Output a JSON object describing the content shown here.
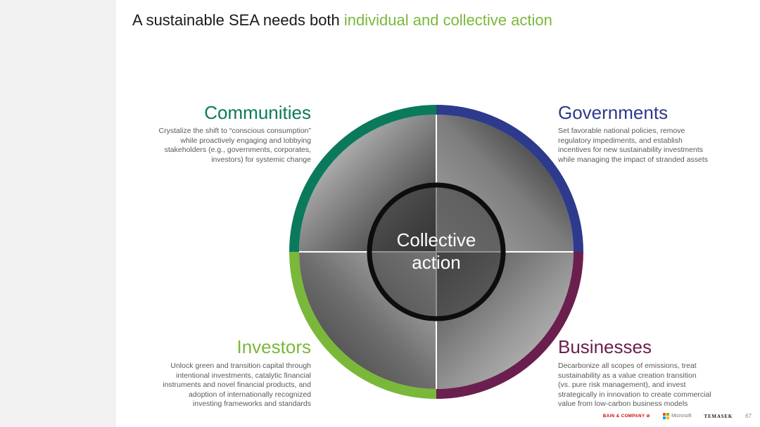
{
  "title": {
    "main": "A sustainable SEA needs both ",
    "accent": "individual and collective action"
  },
  "center": {
    "line1": "Collective",
    "line2": "action"
  },
  "quadrants": {
    "communities": {
      "heading": "Communities",
      "lines": [
        "Crystalize the shift to “conscious consumption”",
        "while proactively engaging and lobbying",
        "stakeholders (e.g., governments, corporates,",
        "investors) for systemic change"
      ],
      "color": "#0b7a5c"
    },
    "governments": {
      "heading": "Governments",
      "lines": [
        "Set favorable national policies, remove",
        "regulatory impediments, and establish",
        "incentives for new sustainability investments",
        "while managing the impact of stranded assets"
      ],
      "color": "#2e3a8c"
    },
    "investors": {
      "heading": "Investors",
      "lines": [
        "Unlock green and transition capital through",
        "intentional investments, catalytic financial",
        "instruments and novel financial products, and",
        "adoption of internationally recognized",
        "investing frameworks and standards"
      ],
      "color": "#7ab83a"
    },
    "businesses": {
      "heading": "Businesses",
      "lines": [
        "Decarbonize all scopes of emissions, treat",
        "sustainability as a value creation transition",
        "(vs. pure risk management), and invest",
        "strategically in innovation to create commercial",
        "value from low-carbon business models"
      ],
      "color": "#6b1f4e"
    }
  },
  "footer": {
    "bain": "BAIN & COMPANY",
    "microsoft": "Microsoft",
    "temasek": "TEMASEK",
    "page": "67"
  }
}
